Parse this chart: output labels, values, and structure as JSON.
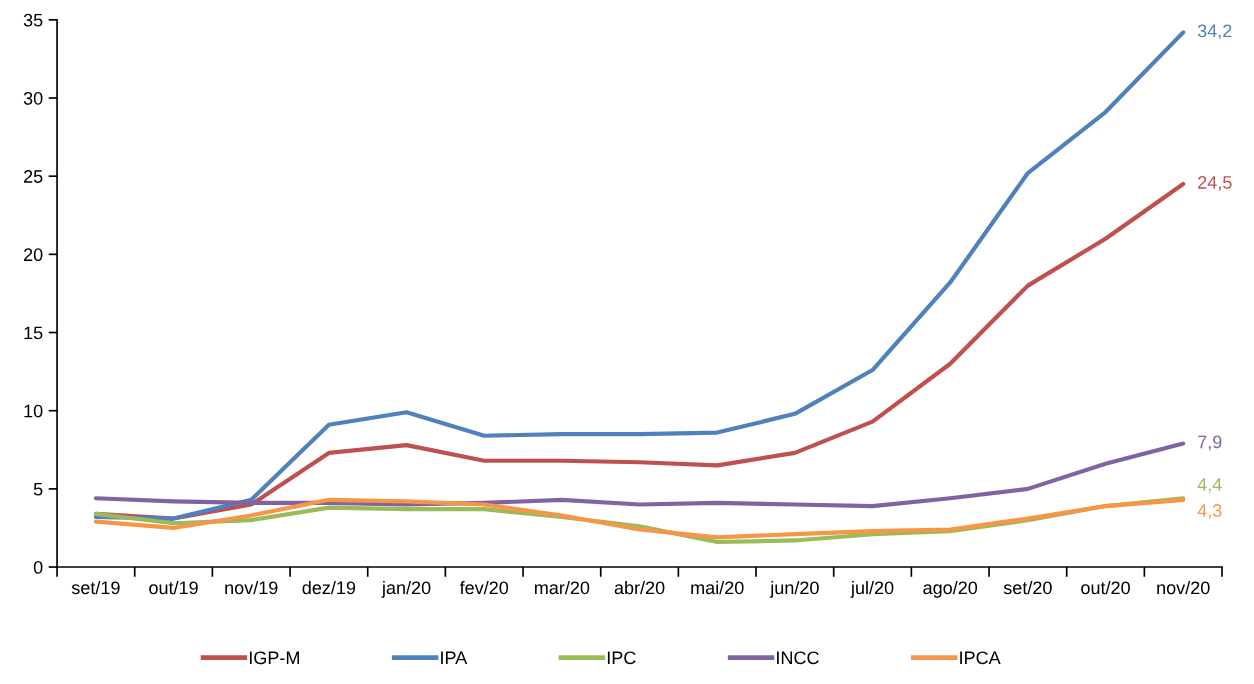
{
  "chart_data": {
    "type": "line",
    "categories": [
      "set/19",
      "out/19",
      "nov/19",
      "dez/19",
      "jan/20",
      "fev/20",
      "mar/20",
      "abr/20",
      "mai/20",
      "jun/20",
      "jul/20",
      "ago/20",
      "set/20",
      "out/20",
      "nov/20"
    ],
    "series": [
      {
        "name": "IGP-M",
        "color": "#c0504d",
        "values": [
          3.4,
          3.1,
          4.0,
          7.3,
          7.8,
          6.8,
          6.8,
          6.7,
          6.5,
          7.3,
          9.3,
          13.0,
          18.0,
          21.0,
          24.5
        ],
        "value_labels": [
          null,
          null,
          null,
          null,
          null,
          null,
          null,
          null,
          null,
          null,
          null,
          null,
          null,
          null,
          "24,5"
        ]
      },
      {
        "name": "IPA",
        "color": "#4f81bd",
        "values": [
          3.2,
          3.1,
          4.3,
          9.1,
          9.9,
          8.4,
          8.5,
          8.5,
          8.6,
          9.8,
          12.6,
          18.2,
          25.2,
          29.1,
          34.2
        ],
        "value_labels": [
          null,
          null,
          null,
          null,
          null,
          null,
          null,
          null,
          null,
          null,
          null,
          null,
          null,
          null,
          "34,2"
        ]
      },
      {
        "name": "IPC",
        "color": "#9bbb59",
        "values": [
          3.4,
          2.8,
          3.0,
          3.8,
          3.7,
          3.7,
          3.2,
          2.6,
          1.6,
          1.7,
          2.1,
          2.3,
          3.0,
          3.9,
          4.4
        ],
        "value_labels": [
          null,
          null,
          null,
          null,
          null,
          null,
          null,
          null,
          null,
          null,
          null,
          null,
          null,
          null,
          "4,4"
        ]
      },
      {
        "name": "INCC",
        "color": "#8064a2",
        "values": [
          4.4,
          4.2,
          4.1,
          4.1,
          4.0,
          4.1,
          4.3,
          4.0,
          4.1,
          4.0,
          3.9,
          4.4,
          5.0,
          6.6,
          7.9
        ],
        "value_labels": [
          null,
          null,
          null,
          null,
          null,
          null,
          null,
          null,
          null,
          null,
          null,
          null,
          null,
          null,
          "7,9"
        ]
      },
      {
        "name": "IPCA",
        "color": "#f79646",
        "values": [
          2.9,
          2.5,
          3.3,
          4.3,
          4.2,
          4.0,
          3.3,
          2.4,
          1.9,
          2.1,
          2.3,
          2.4,
          3.1,
          3.9,
          4.3
        ],
        "value_labels": [
          null,
          null,
          null,
          null,
          null,
          null,
          null,
          null,
          null,
          null,
          null,
          null,
          null,
          null,
          "4,3"
        ]
      }
    ],
    "ylim": [
      0,
      35
    ],
    "yticks": [
      0,
      5,
      10,
      15,
      20,
      25,
      30,
      35
    ],
    "legend": "bottom",
    "line_style": "solid",
    "marker": "none"
  }
}
